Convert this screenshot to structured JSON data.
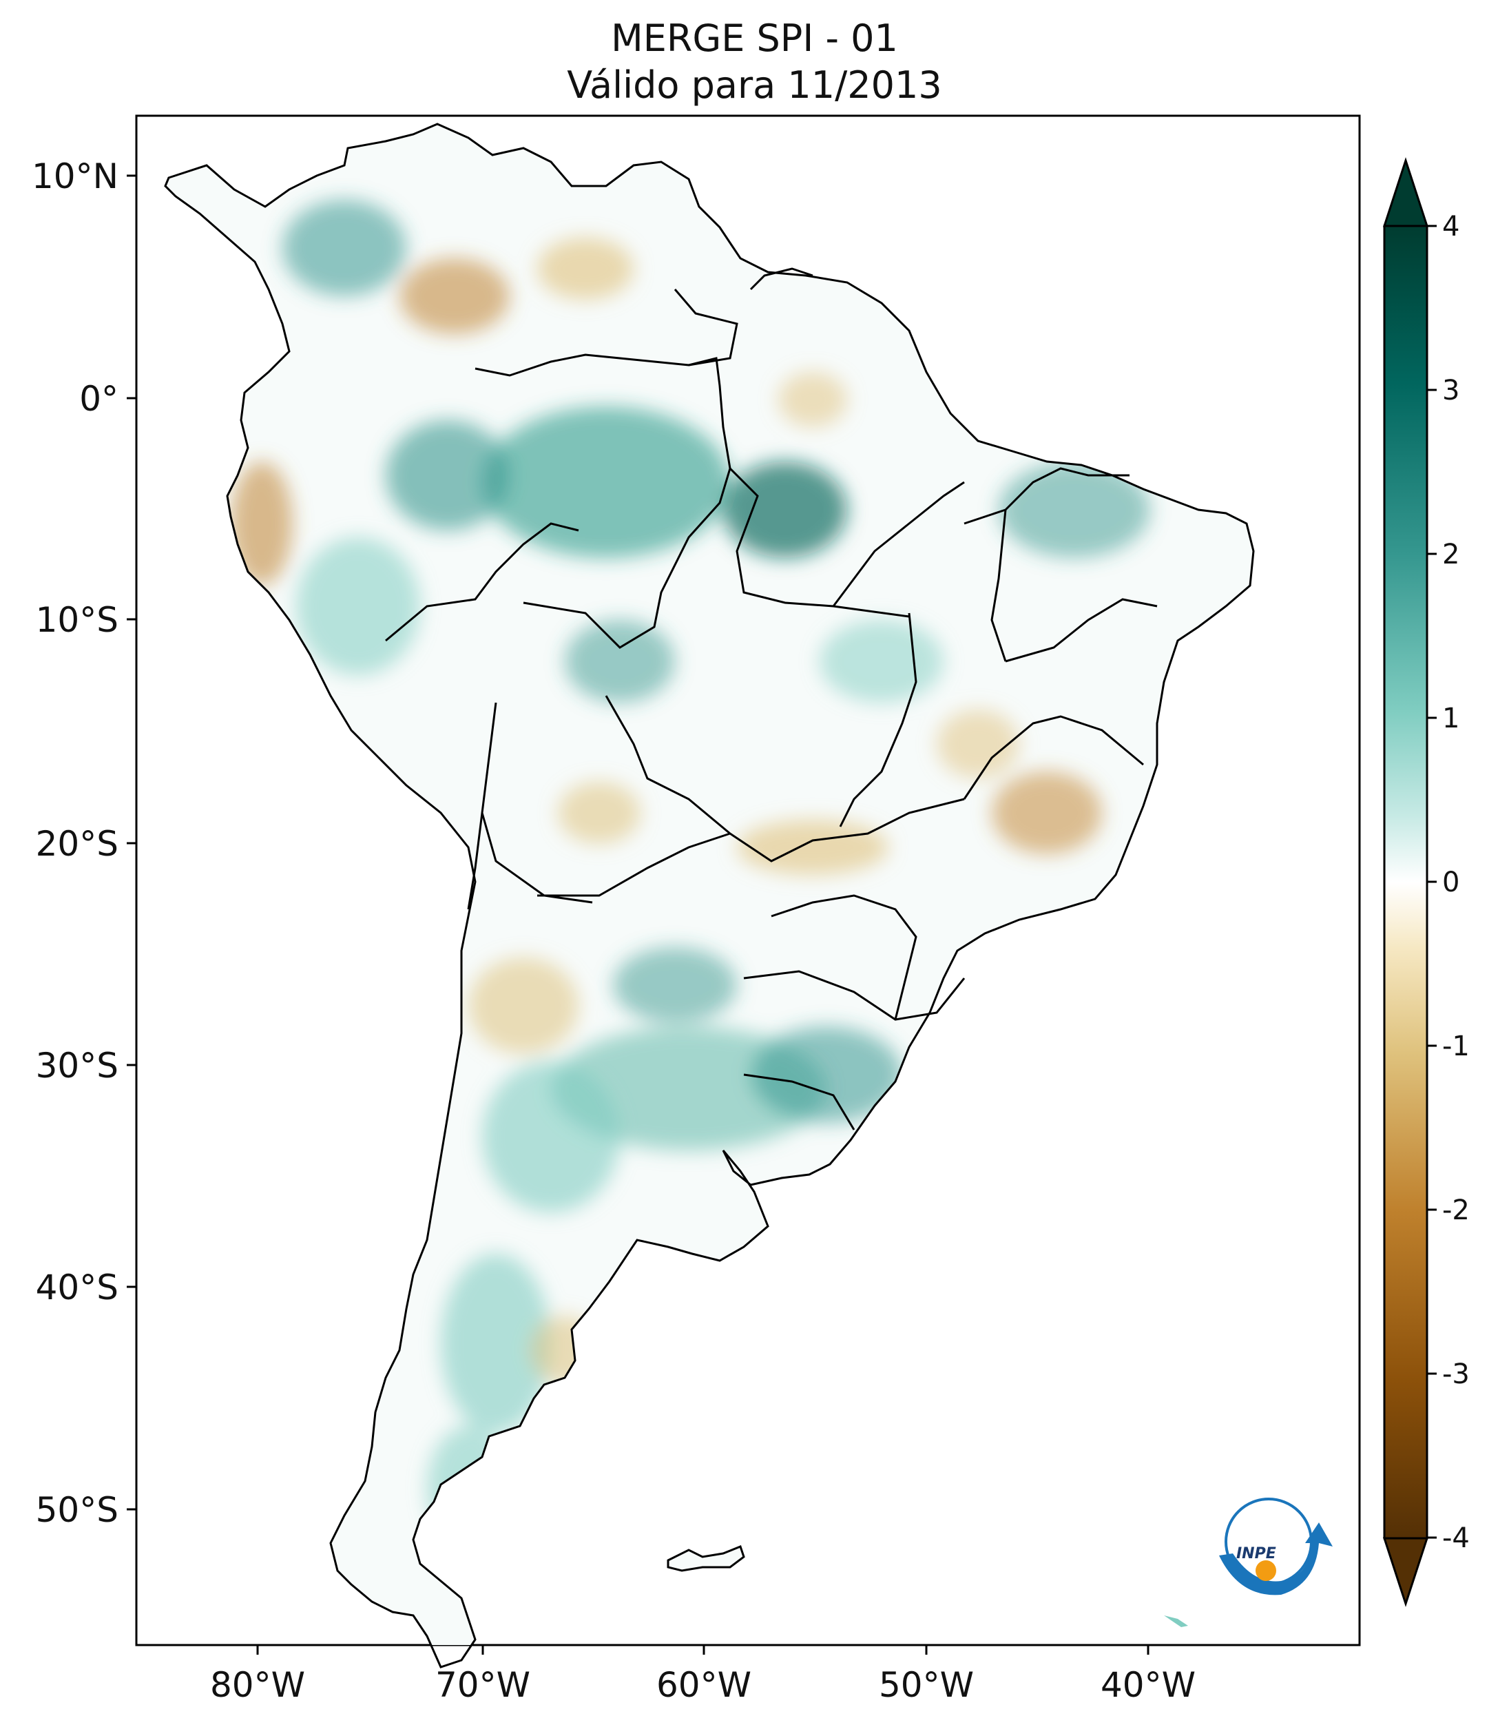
{
  "title": {
    "line1": "MERGE   SPI - 01",
    "line2": "Válido para 11/2013"
  },
  "map": {
    "region": "South America",
    "lon_ticks": [
      "80°W",
      "70°W",
      "60°W",
      "50°W",
      "40°W"
    ],
    "lat_ticks": [
      "10°N",
      "0°",
      "10°S",
      "20°S",
      "30°S",
      "40°S",
      "50°S"
    ],
    "extent_lon": [
      -85,
      -30
    ],
    "extent_lat": [
      -56,
      13
    ]
  },
  "colorbar": {
    "ticks": [
      "4",
      "3",
      "2",
      "1",
      "0",
      "-1",
      "-2",
      "-3",
      "-4"
    ],
    "range": [
      -4,
      4
    ],
    "colormap": "BrBG",
    "colors": {
      "min": "#543005",
      "low": "#bf812d",
      "neutral": "#ffffff",
      "high": "#35978f",
      "max": "#003c30"
    }
  },
  "logo": {
    "text": "INPE",
    "icon": "inpe-logo-icon"
  }
}
